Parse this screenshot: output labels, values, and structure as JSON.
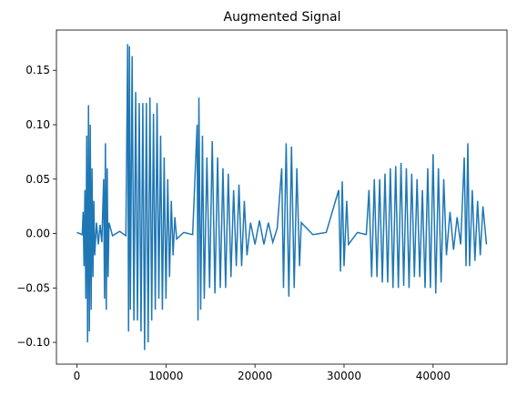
{
  "chart_data": {
    "type": "line",
    "title": "Augmented Signal",
    "color": "#1f77b4",
    "x": [
      0,
      600,
      700,
      800,
      900,
      1000,
      1100,
      1200,
      1300,
      1400,
      1500,
      1600,
      1700,
      1800,
      1900,
      2000,
      2200,
      2400,
      2600,
      2800,
      3000,
      3100,
      3200,
      3300,
      3400,
      3500,
      3600,
      4000,
      4800,
      5500,
      5700,
      5800,
      5900,
      6000,
      6200,
      6400,
      6600,
      6800,
      7000,
      7200,
      7400,
      7600,
      7800,
      8000,
      8200,
      8400,
      8600,
      8800,
      9000,
      9200,
      9400,
      9600,
      9800,
      10000,
      10200,
      10400,
      10600,
      10800,
      11000,
      11200,
      12000,
      13000,
      13500,
      13600,
      13700,
      13900,
      14100,
      14300,
      14600,
      14900,
      15200,
      15500,
      15800,
      16100,
      16400,
      16700,
      17000,
      17300,
      17600,
      17900,
      18200,
      18500,
      18800,
      19100,
      19500,
      20000,
      20500,
      21000,
      21500,
      22000,
      22500,
      23000,
      23200,
      23500,
      23800,
      24100,
      24400,
      24700,
      25000,
      25200,
      26500,
      28000,
      29400,
      29600,
      29800,
      30000,
      30300,
      30500,
      31500,
      32500,
      32800,
      33100,
      33400,
      33700,
      34000,
      34300,
      34600,
      34900,
      35200,
      35500,
      35800,
      36100,
      36400,
      36700,
      37000,
      37300,
      37600,
      37900,
      38200,
      38500,
      38800,
      39100,
      39400,
      39700,
      40000,
      40300,
      40600,
      40900,
      41200,
      41500,
      41900,
      42300,
      42700,
      43100,
      43500,
      43700,
      43900,
      44100,
      44400,
      44700,
      45000,
      45300,
      45600,
      45999
    ],
    "values": [
      0.001,
      -0.001,
      0.02,
      -0.03,
      0.04,
      -0.06,
      0.09,
      -0.1,
      0.118,
      -0.09,
      0.1,
      -0.07,
      0.06,
      -0.04,
      0.03,
      -0.02,
      0.01,
      -0.01,
      0.008,
      -0.008,
      0.05,
      -0.06,
      0.083,
      -0.07,
      0.06,
      -0.04,
      0.01,
      -0.002,
      0.002,
      -0.002,
      0.174,
      -0.09,
      0.172,
      -0.07,
      0.163,
      -0.08,
      0.13,
      -0.08,
      0.12,
      -0.09,
      0.12,
      -0.107,
      0.12,
      -0.1,
      0.125,
      -0.08,
      0.11,
      -0.07,
      0.12,
      -0.06,
      0.09,
      -0.07,
      0.07,
      -0.06,
      0.05,
      -0.04,
      0.03,
      -0.02,
      0.015,
      -0.005,
      0.001,
      -0.001,
      0.1,
      -0.08,
      0.125,
      -0.07,
      0.09,
      -0.06,
      0.07,
      -0.05,
      0.085,
      -0.055,
      0.07,
      -0.05,
      0.06,
      -0.05,
      0.055,
      -0.04,
      0.04,
      -0.03,
      0.045,
      -0.03,
      0.03,
      -0.02,
      0.01,
      -0.01,
      0.012,
      -0.01,
      0.01,
      -0.008,
      0.005,
      0.06,
      -0.05,
      0.083,
      -0.058,
      0.08,
      -0.05,
      0.06,
      -0.03,
      0.01,
      -0.001,
      0.001,
      0.04,
      -0.035,
      0.048,
      -0.03,
      0.03,
      -0.01,
      0.001,
      -0.001,
      0.04,
      -0.04,
      0.05,
      -0.04,
      0.05,
      -0.045,
      0.055,
      -0.045,
      0.06,
      -0.05,
      0.062,
      -0.05,
      0.065,
      -0.048,
      0.06,
      -0.05,
      0.055,
      -0.04,
      0.05,
      -0.04,
      0.04,
      -0.05,
      0.06,
      -0.05,
      0.073,
      -0.055,
      0.06,
      -0.045,
      0.05,
      -0.02,
      0.02,
      -0.015,
      0.015,
      -0.01,
      0.07,
      -0.03,
      0.083,
      -0.03,
      0.04,
      -0.025,
      0.03,
      -0.02,
      0.025,
      -0.01
    ],
    "xlim": [
      -2300,
      48300
    ],
    "ylim": [
      -0.12,
      0.187
    ],
    "xticks": [
      0,
      10000,
      20000,
      30000,
      40000
    ],
    "yticks": [
      {
        "value": -0.1,
        "label": "−0.10"
      },
      {
        "value": -0.05,
        "label": "−0.05"
      },
      {
        "value": 0,
        "label": "0.00"
      },
      {
        "value": 0.05,
        "label": "0.05"
      },
      {
        "value": 0.1,
        "label": "0.10"
      },
      {
        "value": 0.15,
        "label": "0.15"
      }
    ]
  }
}
